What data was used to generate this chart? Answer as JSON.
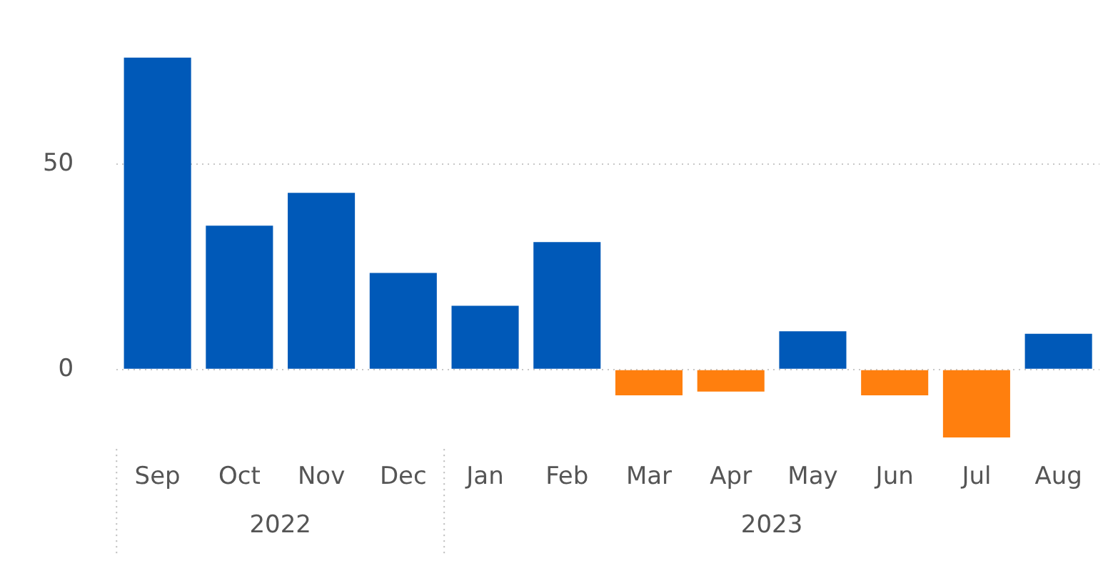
{
  "chart_data": {
    "type": "bar",
    "categories": [
      "Sep",
      "Oct",
      "Nov",
      "Dec",
      "Jan",
      "Feb",
      "Mar",
      "Apr",
      "May",
      "Jun",
      "Jul",
      "Aug"
    ],
    "values": [
      76,
      35,
      43,
      23.5,
      15.5,
      31,
      -6.3,
      -5.4,
      9.3,
      -6.3,
      -16.6,
      8.7
    ],
    "colors": [
      "#0059b8",
      "#0059b8",
      "#0059b8",
      "#0059b8",
      "#0059b8",
      "#0059b8",
      "#ff7f0e",
      "#ff7f0e",
      "#0059b8",
      "#ff7f0e",
      "#ff7f0e",
      "#0059b8"
    ],
    "ylim": [
      -16.6,
      76
    ],
    "yticks": [
      0,
      50
    ],
    "grid": "y",
    "annotations": [
      "2022",
      "2023"
    ]
  }
}
